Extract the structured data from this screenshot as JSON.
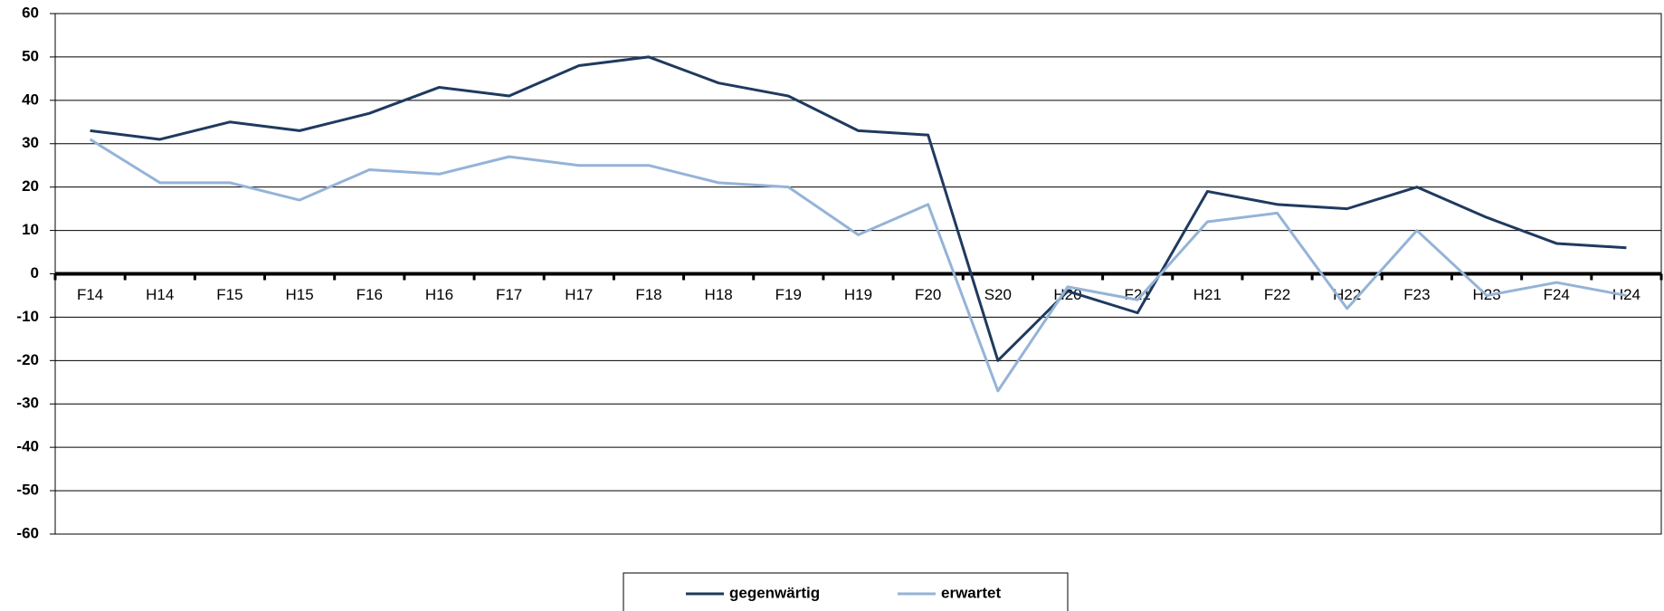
{
  "chart_data": {
    "type": "line",
    "categories": [
      "F14",
      "H14",
      "F15",
      "H15",
      "F16",
      "H16",
      "F17",
      "H17",
      "F18",
      "H18",
      "F19",
      "H19",
      "F20",
      "S20",
      "H20",
      "F21",
      "H21",
      "F22",
      "H22",
      "F23",
      "H23",
      "F24",
      "H24"
    ],
    "series": [
      {
        "name": "gegenwärtig",
        "color": "#1f3a5f",
        "values": [
          33,
          31,
          35,
          33,
          37,
          43,
          41,
          48,
          50,
          44,
          41,
          33,
          32,
          -20,
          -4,
          -9,
          19,
          16,
          15,
          20,
          13,
          7,
          6
        ]
      },
      {
        "name": "erwartet",
        "color": "#95b3d7",
        "values": [
          31,
          21,
          21,
          17,
          24,
          23,
          27,
          25,
          25,
          21,
          20,
          9,
          16,
          -27,
          -3,
          -6,
          12,
          14,
          -8,
          10,
          -5,
          -2,
          -5
        ]
      }
    ],
    "ylim": [
      -60,
      60
    ],
    "yticks": [
      -60,
      -50,
      -40,
      -30,
      -20,
      -10,
      0,
      10,
      20,
      30,
      40,
      50,
      60
    ],
    "grid": true,
    "legend": "bottom"
  }
}
